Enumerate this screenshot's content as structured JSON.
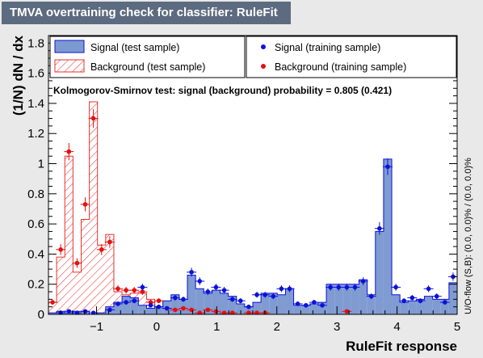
{
  "title": "TMVA overtraining check for classifier: RuleFit",
  "chart_data": {
    "type": "histogram",
    "title": "TMVA overtraining check for classifier: RuleFit",
    "xlabel": "RuleFit response",
    "ylabel": "(1/N) dN / dx",
    "xlim": [
      -1.8,
      5.0
    ],
    "ylim": [
      0,
      1.85
    ],
    "xticks": [
      "−1",
      "0",
      "1",
      "2",
      "3",
      "4",
      "5"
    ],
    "yticks": [
      "0",
      "0.2",
      "0.4",
      "0.6",
      "0.8",
      "1",
      "1.2",
      "1.4",
      "1.6",
      "1.8"
    ],
    "bin_edges_start": -1.8,
    "bin_width": 0.136,
    "legend": {
      "signal_test": "Signal (test sample)",
      "background_test": "Background (test sample)",
      "signal_train": "Signal (training sample)",
      "background_train": "Background (training sample)"
    },
    "ks_text": "Kolmogorov-Smirnov test: signal (background) probability = 0.805 (0.421)",
    "side_text": "U/O-flow (S,B): (0.0, 0.0)% / (0.0, 0.0)%",
    "series": [
      {
        "name": "Signal (test sample)",
        "style": "filled-bar",
        "color": "#7d99d1",
        "values": [
          0.01,
          0.02,
          0.01,
          0.02,
          0.02,
          0.0,
          0.01,
          0.05,
          0.08,
          0.12,
          0.11,
          0.06,
          0.04,
          0.05,
          0.09,
          0.13,
          0.1,
          0.26,
          0.17,
          0.14,
          0.16,
          0.14,
          0.12,
          0.07,
          0.05,
          0.08,
          0.14,
          0.14,
          0.13,
          0.17,
          0.06,
          0.06,
          0.07,
          0.08,
          0.2,
          0.2,
          0.2,
          0.2,
          0.23,
          0.13,
          0.55,
          1.03,
          0.13,
          0.08,
          0.09,
          0.1,
          0.12,
          0.1,
          0.1,
          0.21
        ]
      },
      {
        "name": "Background (test sample)",
        "style": "hatched-bar",
        "color": "#e8312f",
        "values": [
          0.08,
          0.38,
          1.05,
          0.28,
          0.63,
          1.41,
          0.46,
          0.53,
          0.15,
          0.13,
          0.14,
          0.14,
          0.1,
          0.03,
          0.03,
          0.02,
          0.02,
          0.01,
          0.01,
          0.02,
          0.01,
          0.01,
          0.01,
          0.0,
          0.0,
          0.0,
          0.0,
          0.0,
          0.0,
          0.0,
          0.0,
          0.0,
          0.0,
          0.0,
          0.0,
          0.0,
          0.0,
          0.0,
          0.0,
          0.0,
          0.0,
          0.0,
          0.0,
          0.0,
          0.0,
          0.0,
          0.0,
          0.0,
          0.0,
          0.0
        ]
      },
      {
        "name": "Signal (training sample)",
        "style": "points",
        "color": "#0b12d9",
        "values": [
          0.0,
          0.01,
          0.02,
          0.01,
          0.02,
          0.01,
          0.0,
          0.03,
          0.07,
          0.08,
          0.09,
          0.18,
          0.06,
          0.05,
          0.04,
          0.11,
          0.1,
          0.28,
          0.22,
          0.15,
          0.18,
          0.16,
          0.1,
          0.09,
          0.05,
          0.13,
          0.13,
          0.12,
          0.17,
          0.17,
          0.07,
          0.06,
          0.08,
          0.06,
          0.18,
          0.18,
          0.18,
          0.18,
          0.22,
          0.12,
          0.57,
          0.98,
          0.18,
          0.09,
          0.11,
          0.09,
          0.17,
          0.12,
          0.08,
          0.25
        ]
      },
      {
        "name": "Background (training sample)",
        "style": "points",
        "color": "#e50f0f",
        "values": [
          0.08,
          0.43,
          1.08,
          0.34,
          0.73,
          1.3,
          0.43,
          0.48,
          0.17,
          0.16,
          0.16,
          0.15,
          0.08,
          0.09,
          0.04,
          0.03,
          0.04,
          0.03,
          0.01,
          0.03,
          0.02,
          0.01,
          0.01,
          0.0,
          0.01,
          0.01,
          0.01,
          0.0,
          0.0,
          0.0,
          0.0,
          0.0,
          0.0,
          0.0,
          0.0,
          0.0,
          0.02,
          0.0,
          0.0,
          0.0,
          0.0,
          0.0,
          0.0,
          0.0,
          0.0,
          0.0,
          0.0,
          0.0,
          0.0,
          0.0
        ]
      }
    ]
  },
  "colors": {
    "background": "#e9e9e9",
    "title_bg": "#5c6b80",
    "signal_fill": "#7d99d1",
    "signal_line": "#0b12d9",
    "background_hist": "#e8312f"
  }
}
